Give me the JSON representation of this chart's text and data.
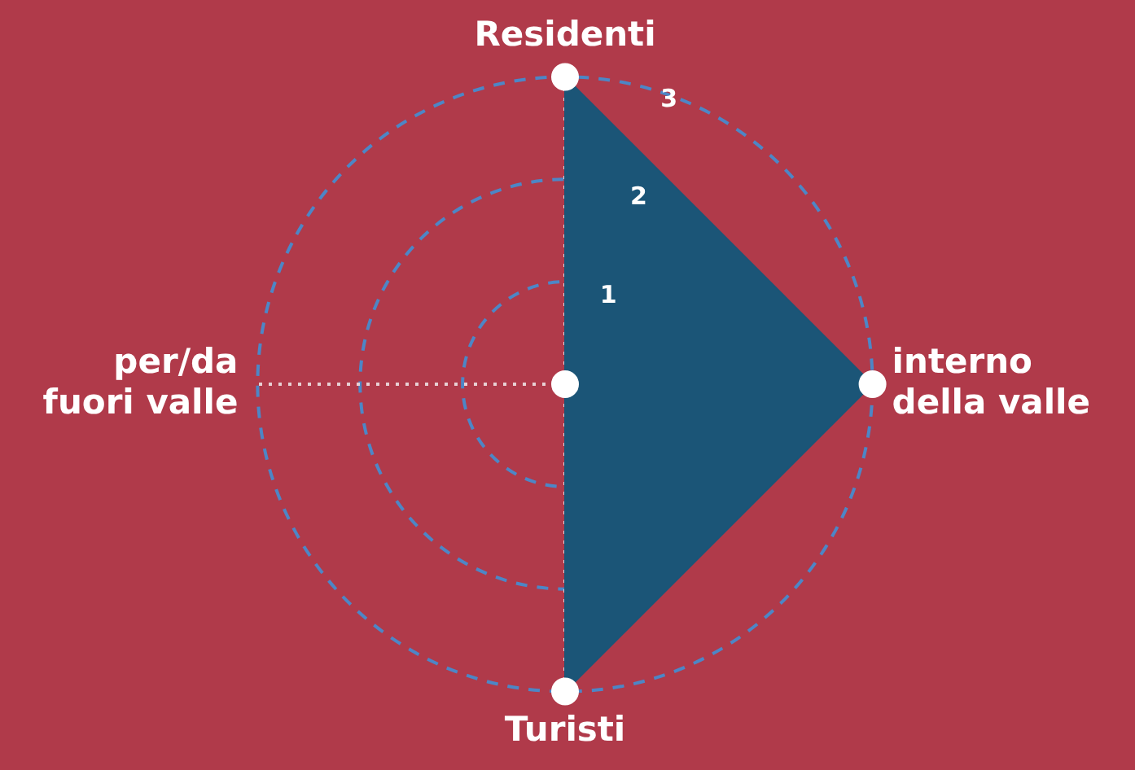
{
  "chart_data": {
    "type": "radar",
    "categories": [
      "Residenti",
      "interno della valle",
      "Turisti",
      "per/da fuori valle"
    ],
    "series": [
      {
        "color": "#1b5577",
        "values": [
          3,
          3,
          3,
          0
        ]
      }
    ],
    "ylim": [
      0,
      3
    ],
    "yticks": [
      1,
      2,
      3
    ],
    "grid": true,
    "marker": "circle",
    "legend": false
  }
}
